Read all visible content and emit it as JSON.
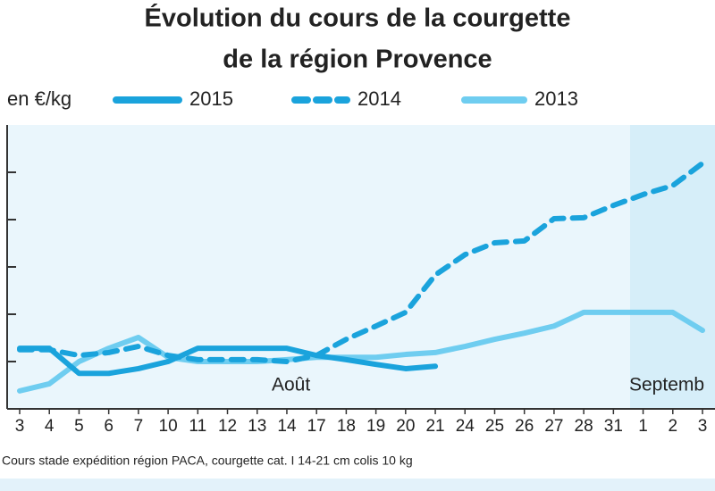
{
  "chart_data": {
    "type": "line",
    "title": [
      "Évolution du cours de la courgette",
      "de la région Provence"
    ],
    "y_label": "en €/kg",
    "source": "Cours stade expédition région PACA, courgette cat. I 14-21 cm colis 10 kg",
    "month_labels": [
      "Août",
      "Septemb"
    ],
    "categories": [
      "3",
      "4",
      "5",
      "6",
      "7",
      "10",
      "11",
      "12",
      "13",
      "14",
      "17",
      "18",
      "19",
      "20",
      "21",
      "24",
      "25",
      "26",
      "27",
      "28",
      "31",
      "1",
      "2",
      "3"
    ],
    "ylim": [
      0,
      6
    ],
    "yticks": [
      1,
      2,
      3,
      4,
      5
    ],
    "series": [
      {
        "name": "2015",
        "color": "#1aa3dc",
        "dashed": false,
        "values": [
          1.28,
          1.28,
          0.75,
          0.75,
          0.85,
          1.0,
          1.28,
          1.28,
          1.28,
          1.28,
          1.13,
          1.04,
          0.94,
          0.85,
          0.9,
          null,
          null,
          null,
          null,
          null,
          null,
          null,
          null,
          null
        ]
      },
      {
        "name": "2014",
        "color": "#1aa3dc",
        "dashed": true,
        "values": [
          1.25,
          1.25,
          1.13,
          1.19,
          1.32,
          1.13,
          1.04,
          1.04,
          1.04,
          1.0,
          1.13,
          1.47,
          1.75,
          2.04,
          2.83,
          3.26,
          3.51,
          3.55,
          4.02,
          4.04,
          4.3,
          4.53,
          4.72,
          5.19
        ]
      },
      {
        "name": "2013",
        "color": "#6fcdf0",
        "dashed": false,
        "values": [
          0.38,
          0.53,
          1.0,
          1.28,
          1.51,
          1.09,
          1.0,
          1.0,
          1.0,
          1.04,
          1.09,
          1.09,
          1.09,
          1.15,
          1.19,
          1.32,
          1.47,
          1.6,
          1.75,
          2.04,
          2.04,
          2.04,
          2.04,
          1.66
        ]
      }
    ]
  }
}
